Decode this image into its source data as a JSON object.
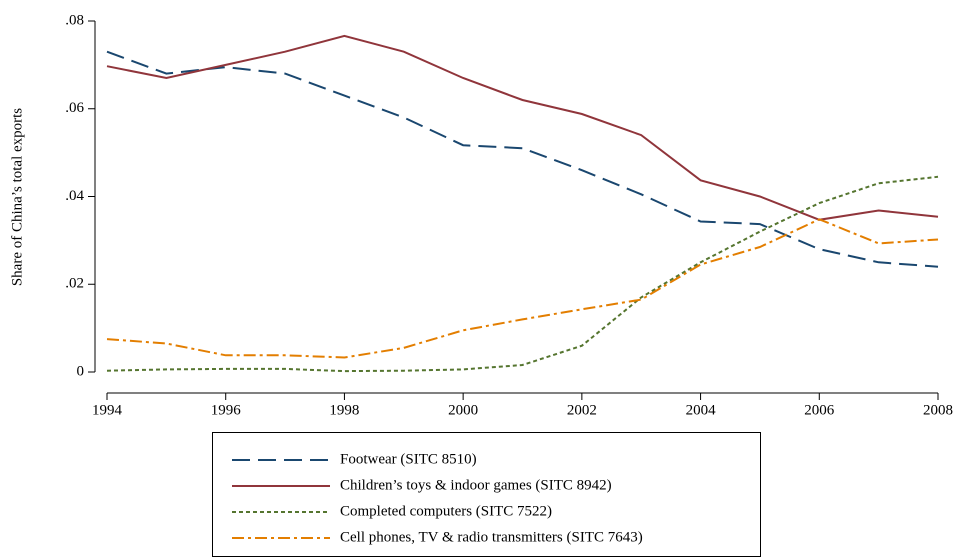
{
  "chart_data": {
    "type": "line",
    "y_label": "Share of China’s total exports",
    "x": [
      1994,
      1995,
      1996,
      1997,
      1998,
      1999,
      2000,
      2001,
      2002,
      2003,
      2004,
      2005,
      2006,
      2007,
      2008
    ],
    "xlim": [
      1994,
      2008
    ],
    "xticks": [
      1994,
      1996,
      1998,
      2000,
      2002,
      2004,
      2006,
      2008
    ],
    "ylim": [
      0,
      0.08
    ],
    "yticks": [
      0,
      {
        "value": 0.02,
        "label": ".02"
      },
      {
        "value": 0.04,
        "label": ".04"
      },
      {
        "value": 0.06,
        "label": ".06"
      },
      {
        "value": 0.08,
        "label": ".08"
      }
    ],
    "grid": false,
    "legend": "bottom",
    "series": [
      {
        "name": "Footwear (SITC 8510)",
        "color": "#1a476f",
        "dash": "18 8",
        "values": [
          0.073,
          0.068,
          0.0695,
          0.068,
          0.063,
          0.058,
          0.0517,
          0.051,
          0.046,
          0.0405,
          0.0343,
          0.0337,
          0.028,
          0.025,
          0.024
        ]
      },
      {
        "name": "Children’s toys & indoor games (SITC 8942)",
        "color": "#90353b",
        "dash": "none",
        "values": [
          0.0697,
          0.067,
          0.07,
          0.073,
          0.0766,
          0.073,
          0.067,
          0.062,
          0.0588,
          0.054,
          0.0437,
          0.04,
          0.0347,
          0.0368,
          0.0354
        ]
      },
      {
        "name": "Completed computers (SITC 7522)",
        "color": "#55752f",
        "dash": "4 3",
        "values": [
          0.0003,
          0.0006,
          0.0007,
          0.0007,
          0.0002,
          0.0003,
          0.0006,
          0.0016,
          0.006,
          0.017,
          0.025,
          0.032,
          0.0385,
          0.043,
          0.0445
        ]
      },
      {
        "name": "Cell phones, TV & radio transmitters (SITC 7643)",
        "color": "#e37e00",
        "dash": "12 4 3 4",
        "values": [
          0.0075,
          0.0065,
          0.0038,
          0.0038,
          0.0033,
          0.0055,
          0.0095,
          0.012,
          0.0143,
          0.0165,
          0.0245,
          0.0285,
          0.0348,
          0.0293,
          0.0302
        ]
      }
    ]
  }
}
